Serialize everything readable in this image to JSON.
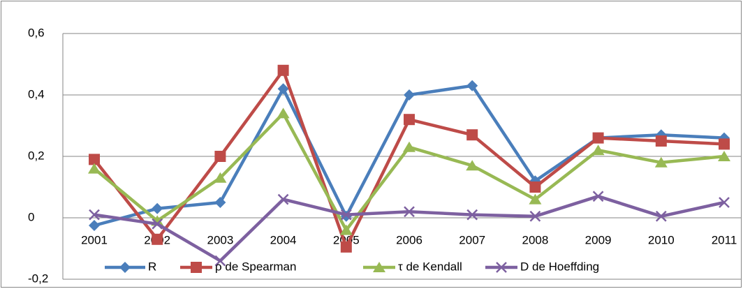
{
  "chart_data": {
    "type": "line",
    "categories": [
      "2001",
      "2002",
      "2003",
      "2004",
      "2005",
      "2006",
      "2007",
      "2008",
      "2009",
      "2010",
      "2011"
    ],
    "series": [
      {
        "name": "R",
        "color": "#4a7ebb",
        "marker": "diamond",
        "values": [
          -0.025,
          0.03,
          0.05,
          0.42,
          0.005,
          0.4,
          0.43,
          0.12,
          0.26,
          0.27,
          0.26
        ]
      },
      {
        "name": "ρ de Spearman",
        "color": "#be4b48",
        "marker": "square",
        "values": [
          0.19,
          -0.07,
          0.2,
          0.48,
          -0.095,
          0.32,
          0.27,
          0.1,
          0.26,
          0.25,
          0.24
        ]
      },
      {
        "name": "τ de Kendall",
        "color": "#98b954",
        "marker": "triangle",
        "values": [
          0.16,
          -0.01,
          0.13,
          0.34,
          -0.04,
          0.23,
          0.17,
          0.06,
          0.22,
          0.18,
          0.2
        ]
      },
      {
        "name": "D de Hoeffding",
        "color": "#7d60a0",
        "marker": "x",
        "values": [
          0.01,
          -0.02,
          -0.14,
          0.06,
          0.01,
          0.02,
          0.01,
          0.005,
          0.07,
          0.005,
          0.05
        ]
      }
    ],
    "ylim": [
      -0.2,
      0.6
    ],
    "yticks": [
      {
        "value": -0.2,
        "label": "-0,2"
      },
      0,
      {
        "value": 0.2,
        "label": "0,2"
      },
      {
        "value": 0.4,
        "label": "0,4"
      },
      {
        "value": 0.6,
        "label": "0,6"
      }
    ],
    "grid": true,
    "legend": "bottom"
  }
}
